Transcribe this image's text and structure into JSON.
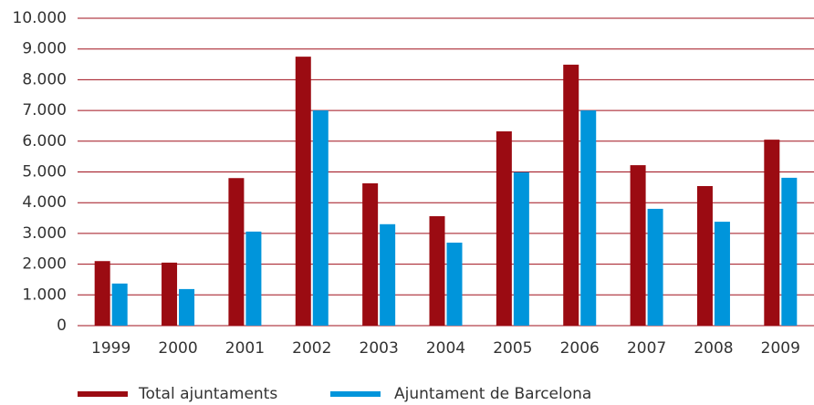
{
  "chart_data": {
    "type": "bar",
    "categories": [
      "1999",
      "2000",
      "2001",
      "2002",
      "2003",
      "2004",
      "2005",
      "2006",
      "2007",
      "2008",
      "2009"
    ],
    "series": [
      {
        "name": "Total ajuntaments",
        "color": "#9b0b12",
        "values": [
          2100,
          2050,
          4800,
          8750,
          4630,
          3560,
          6320,
          8490,
          5220,
          4540,
          6050
        ]
      },
      {
        "name": "Ajuntament de Barcelona",
        "color": "#0095db",
        "values": [
          1370,
          1190,
          3060,
          7000,
          3300,
          2700,
          4990,
          7000,
          3800,
          3380,
          4810
        ]
      }
    ],
    "ylim": [
      0,
      10000
    ],
    "yticks": [
      0,
      {
        "value": 1000,
        "label": "1.000"
      },
      {
        "value": 2000,
        "label": "2.000"
      },
      {
        "value": 3000,
        "label": "3.000"
      },
      {
        "value": 4000,
        "label": "4.000"
      },
      {
        "value": 5000,
        "label": "5.000"
      },
      {
        "value": 6000,
        "label": "6.000"
      },
      {
        "value": 7000,
        "label": "7.000"
      },
      {
        "value": 8000,
        "label": "8.000"
      },
      {
        "value": 9000,
        "label": "9.000"
      },
      {
        "value": 10000,
        "label": "10.000"
      }
    ],
    "grid": true,
    "grid_color": "#a0101c",
    "legend": "bottom"
  }
}
